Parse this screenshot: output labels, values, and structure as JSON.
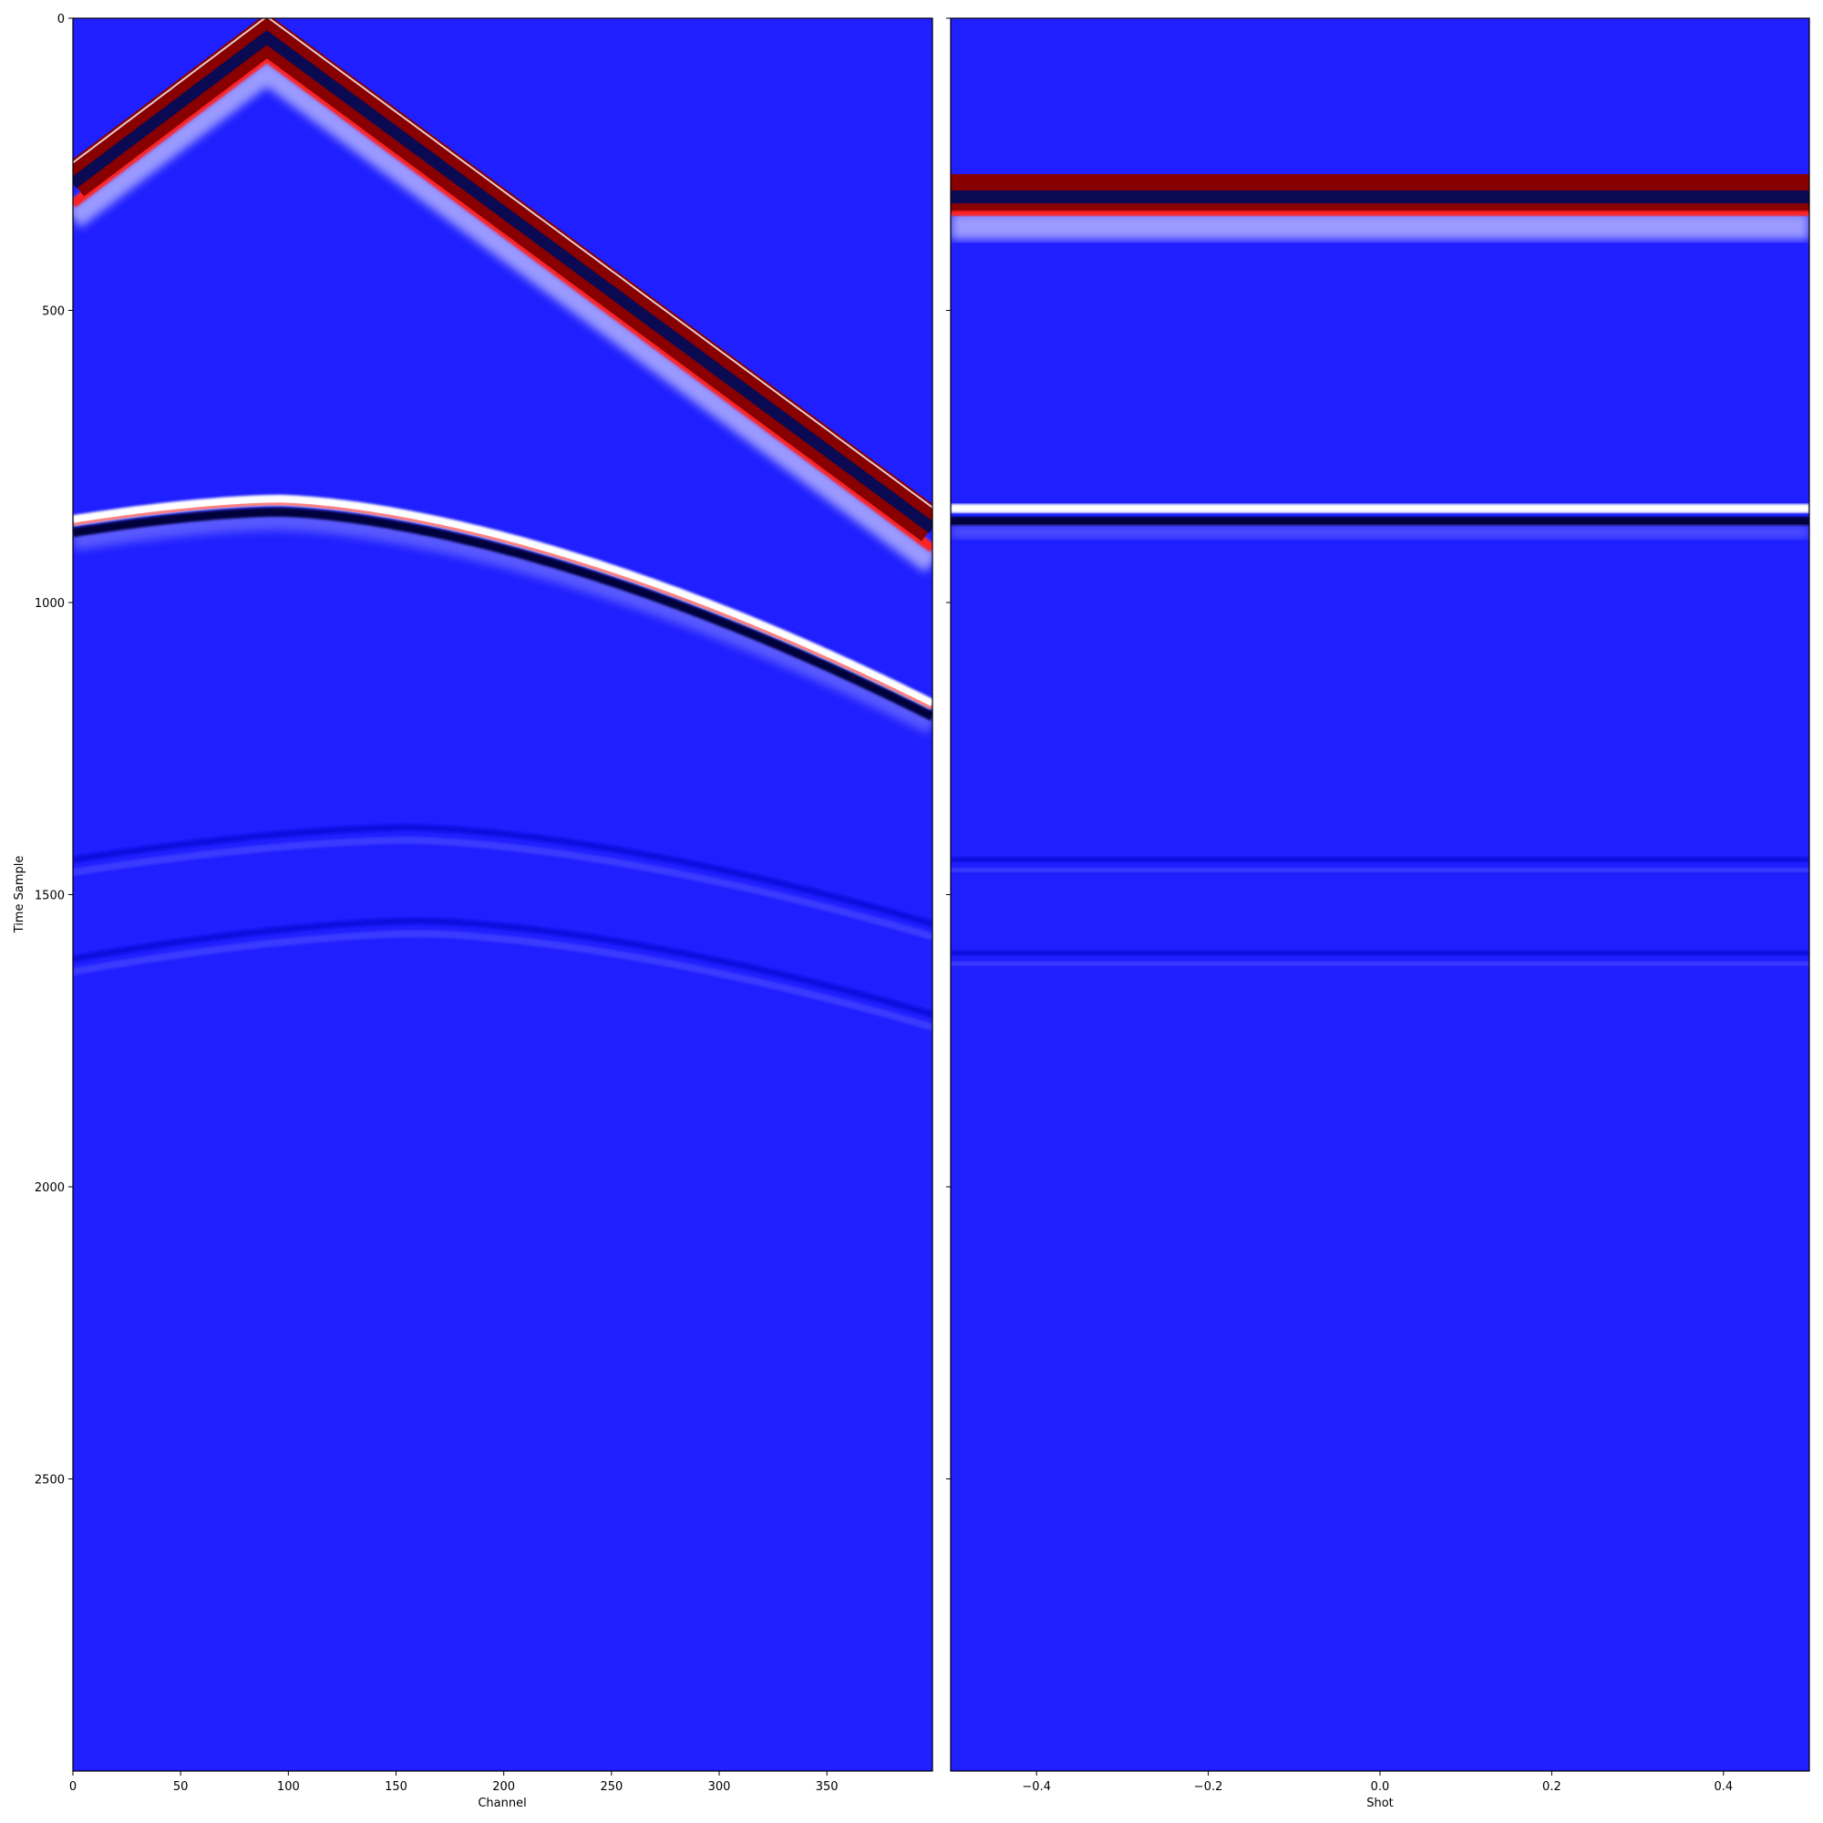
{
  "chart_data": [
    {
      "type": "heatmap",
      "panel": "left",
      "xlabel": "Channel",
      "ylabel": "Time Sample",
      "xlim": [
        0,
        399
      ],
      "ylim": [
        3000,
        0
      ],
      "x_ticks": [
        0,
        50,
        100,
        150,
        200,
        250,
        300,
        350
      ],
      "y_ticks": [
        0,
        500,
        1000,
        1500,
        2000,
        2500
      ],
      "colormap": "seismic",
      "colors": {
        "background": "#1f1fff",
        "positive": "#880000",
        "negative": "#0a0a52",
        "mid": "#ffffff"
      },
      "events": [
        {
          "name": "direct arrival",
          "kind": "linear",
          "apex_channel": 90,
          "apex_time": 30,
          "left_time": 280,
          "right_time": 870,
          "amplitude": "strong"
        },
        {
          "name": "reflection 1",
          "kind": "hyperbolic",
          "apex_channel": 95,
          "apex_time": 825,
          "left_time": 860,
          "right_time": 1175,
          "amplitude": "strong"
        },
        {
          "name": "reflection 2",
          "kind": "hyperbolic",
          "apex_channel": 155,
          "apex_time": 1385,
          "left_time": 1440,
          "right_time": 1550,
          "amplitude": "weak"
        },
        {
          "name": "reflection 3",
          "kind": "hyperbolic",
          "apex_channel": 160,
          "apex_time": 1545,
          "left_time": 1610,
          "right_time": 1705,
          "amplitude": "weak"
        }
      ]
    },
    {
      "type": "heatmap",
      "panel": "right",
      "xlabel": "Shot",
      "ylabel": "",
      "xlim": [
        -0.5,
        0.5
      ],
      "ylim": [
        3000,
        0
      ],
      "x_ticks": [
        -0.4,
        -0.2,
        0.0,
        0.2,
        0.4
      ],
      "x_tick_labels": [
        "−0.4",
        "−0.2",
        "0.0",
        "0.2",
        "0.4"
      ],
      "y_ticks": [
        0,
        500,
        1000,
        1500,
        2000,
        2500
      ],
      "shared_y": true,
      "colormap": "seismic",
      "events": [
        {
          "name": "direct arrival",
          "time": 270,
          "amplitude": "strong"
        },
        {
          "name": "reflection 1",
          "time": 850,
          "amplitude": "strong"
        },
        {
          "name": "reflection 2",
          "time": 1440,
          "amplitude": "weak"
        },
        {
          "name": "reflection 3",
          "time": 1600,
          "amplitude": "weak"
        }
      ]
    }
  ]
}
